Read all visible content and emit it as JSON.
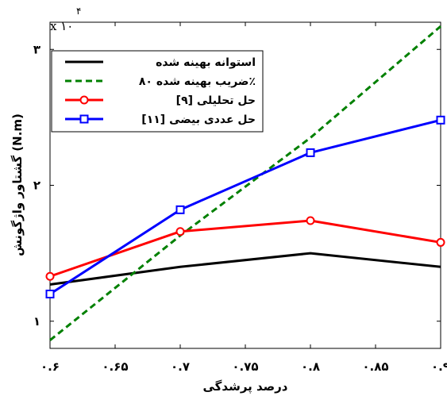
{
  "chart_data": {
    "type": "line",
    "x": [
      0.6,
      0.7,
      0.8,
      0.9
    ],
    "xlim": [
      0.6,
      0.9
    ],
    "ylim": [
      0.8,
      3.2
    ],
    "x_ticks": [
      0.6,
      0.65,
      0.7,
      0.75,
      0.8,
      0.85,
      0.9
    ],
    "x_tick_labels": [
      "۰.۶",
      "۰.۶۵",
      "۰.۷",
      "۰.۷۵",
      "۰.۸",
      "۰.۸۵",
      "۰.۹"
    ],
    "y_ticks": [
      1,
      2,
      3
    ],
    "y_tick_labels": [
      "۱",
      "۲",
      "۳"
    ],
    "y_multiplier": "x ۱۰",
    "y_multiplier_exponent": "۴",
    "xlabel": "درصد پرشدگی",
    "ylabel": "گشتاور واژگونش (N.m)",
    "grid": false,
    "legend_position": "top-left",
    "series": [
      {
        "name": "استوانه بهینه شده",
        "color": "#000000",
        "dash": "solid",
        "marker": "none",
        "values": [
          1.27,
          1.4,
          1.5,
          1.4
        ]
      },
      {
        "name": "ضریب بهینه شده ۸۰٪",
        "color": "#008000",
        "dash": "dashed",
        "marker": "none",
        "values": [
          0.86,
          1.63,
          2.35,
          3.17
        ]
      },
      {
        "name": "حل تحلیلی [۹]",
        "color": "#ff0000",
        "dash": "solid",
        "marker": "circle",
        "values": [
          1.33,
          1.66,
          1.74,
          1.58
        ]
      },
      {
        "name": "حل عددی بیضی [۱۱]",
        "color": "#0000ff",
        "dash": "solid",
        "marker": "square",
        "values": [
          1.2,
          1.82,
          2.24,
          2.48
        ]
      }
    ]
  }
}
